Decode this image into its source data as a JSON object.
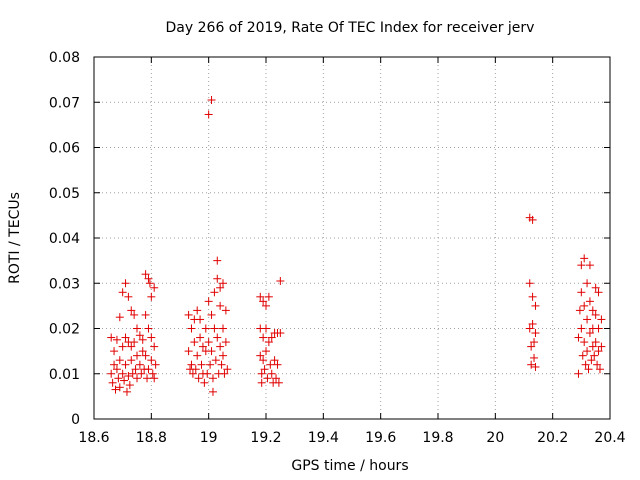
{
  "chart_data": {
    "type": "scatter",
    "title": "Day 266 of 2019, Rate Of TEC Index for receiver jerv",
    "xlabel": "GPS time / hours",
    "ylabel": "ROTI / TECUs",
    "xlim": [
      18.6,
      20.4
    ],
    "ylim": [
      0,
      0.08
    ],
    "xticks": [
      "18.6",
      "18.8",
      "19",
      "19.2",
      "19.4",
      "19.6",
      "19.8",
      "20",
      "20.2",
      "20.4"
    ],
    "yticks": [
      "0",
      "0.01",
      "0.02",
      "0.03",
      "0.04",
      "0.05",
      "0.06",
      "0.07",
      "0.08"
    ],
    "grid": true,
    "marker": "+",
    "color": "#e00000",
    "series": [
      {
        "name": "ROTI",
        "points": [
          [
            18.66,
            0.018
          ],
          [
            18.66,
            0.01
          ],
          [
            18.665,
            0.008
          ],
          [
            18.67,
            0.015
          ],
          [
            18.67,
            0.012
          ],
          [
            18.675,
            0.0065
          ],
          [
            18.68,
            0.0175
          ],
          [
            18.68,
            0.011
          ],
          [
            18.685,
            0.009
          ],
          [
            18.69,
            0.0225
          ],
          [
            18.69,
            0.013
          ],
          [
            18.69,
            0.007
          ],
          [
            18.7,
            0.028
          ],
          [
            18.7,
            0.016
          ],
          [
            18.7,
            0.01
          ],
          [
            18.705,
            0.0085
          ],
          [
            18.71,
            0.03
          ],
          [
            18.71,
            0.018
          ],
          [
            18.71,
            0.012
          ],
          [
            18.715,
            0.006
          ],
          [
            18.72,
            0.027
          ],
          [
            18.72,
            0.017
          ],
          [
            18.72,
            0.0095
          ],
          [
            18.725,
            0.0075
          ],
          [
            18.73,
            0.024
          ],
          [
            18.73,
            0.016
          ],
          [
            18.73,
            0.013
          ],
          [
            18.735,
            0.01
          ],
          [
            18.74,
            0.023
          ],
          [
            18.74,
            0.017
          ],
          [
            18.745,
            0.011
          ],
          [
            18.75,
            0.02
          ],
          [
            18.75,
            0.014
          ],
          [
            18.75,
            0.009
          ],
          [
            18.76,
            0.0185
          ],
          [
            18.76,
            0.012
          ],
          [
            18.765,
            0.01
          ],
          [
            18.77,
            0.0175
          ],
          [
            18.77,
            0.015
          ],
          [
            18.775,
            0.011
          ],
          [
            18.78,
            0.032
          ],
          [
            18.78,
            0.023
          ],
          [
            18.78,
            0.014
          ],
          [
            18.785,
            0.009
          ],
          [
            18.79,
            0.031
          ],
          [
            18.79,
            0.02
          ],
          [
            18.79,
            0.011
          ],
          [
            18.795,
            0.03
          ],
          [
            18.8,
            0.027
          ],
          [
            18.8,
            0.018
          ],
          [
            18.8,
            0.013
          ],
          [
            18.805,
            0.01
          ],
          [
            18.81,
            0.029
          ],
          [
            18.81,
            0.016
          ],
          [
            18.81,
            0.009
          ],
          [
            18.815,
            0.012
          ],
          [
            18.93,
            0.023
          ],
          [
            18.93,
            0.015
          ],
          [
            18.935,
            0.011
          ],
          [
            18.94,
            0.02
          ],
          [
            18.94,
            0.012
          ],
          [
            18.945,
            0.01
          ],
          [
            18.95,
            0.022
          ],
          [
            18.95,
            0.017
          ],
          [
            18.955,
            0.011
          ],
          [
            18.96,
            0.024
          ],
          [
            18.96,
            0.014
          ],
          [
            18.965,
            0.009
          ],
          [
            18.97,
            0.022
          ],
          [
            18.97,
            0.018
          ],
          [
            18.975,
            0.012
          ],
          [
            18.98,
            0.016
          ],
          [
            18.98,
            0.01
          ],
          [
            18.985,
            0.008
          ],
          [
            18.99,
            0.02
          ],
          [
            18.99,
            0.015
          ],
          [
            18.995,
            0.01
          ],
          [
            19.0,
            0.0673
          ],
          [
            19.0,
            0.026
          ],
          [
            19.0,
            0.017
          ],
          [
            19.005,
            0.012
          ],
          [
            19.01,
            0.0705
          ],
          [
            19.01,
            0.023
          ],
          [
            19.01,
            0.015
          ],
          [
            19.015,
            0.009
          ],
          [
            19.015,
            0.006
          ],
          [
            19.02,
            0.028
          ],
          [
            19.02,
            0.02
          ],
          [
            19.025,
            0.013
          ],
          [
            19.03,
            0.035
          ],
          [
            19.03,
            0.031
          ],
          [
            19.03,
            0.018
          ],
          [
            19.035,
            0.01
          ],
          [
            19.04,
            0.029
          ],
          [
            19.04,
            0.025
          ],
          [
            19.04,
            0.016
          ],
          [
            19.045,
            0.012
          ],
          [
            19.05,
            0.03
          ],
          [
            19.05,
            0.02
          ],
          [
            19.05,
            0.014
          ],
          [
            19.055,
            0.01
          ],
          [
            19.06,
            0.024
          ],
          [
            19.06,
            0.017
          ],
          [
            19.065,
            0.011
          ],
          [
            19.18,
            0.027
          ],
          [
            19.18,
            0.02
          ],
          [
            19.18,
            0.014
          ],
          [
            19.185,
            0.01
          ],
          [
            19.185,
            0.008
          ],
          [
            19.19,
            0.026
          ],
          [
            19.19,
            0.018
          ],
          [
            19.19,
            0.013
          ],
          [
            19.195,
            0.011
          ],
          [
            19.2,
            0.025
          ],
          [
            19.2,
            0.02
          ],
          [
            19.2,
            0.015
          ],
          [
            19.205,
            0.009
          ],
          [
            19.21,
            0.027
          ],
          [
            19.21,
            0.017
          ],
          [
            19.215,
            0.012
          ],
          [
            19.22,
            0.018
          ],
          [
            19.22,
            0.01
          ],
          [
            19.225,
            0.008
          ],
          [
            19.23,
            0.019
          ],
          [
            19.23,
            0.013
          ],
          [
            19.235,
            0.009
          ],
          [
            19.24,
            0.019
          ],
          [
            19.24,
            0.012
          ],
          [
            19.245,
            0.008
          ],
          [
            19.25,
            0.0305
          ],
          [
            19.25,
            0.019
          ],
          [
            20.12,
            0.0445
          ],
          [
            20.12,
            0.03
          ],
          [
            20.12,
            0.02
          ],
          [
            20.125,
            0.016
          ],
          [
            20.125,
            0.012
          ],
          [
            20.13,
            0.044
          ],
          [
            20.13,
            0.027
          ],
          [
            20.13,
            0.021
          ],
          [
            20.135,
            0.017
          ],
          [
            20.135,
            0.0135
          ],
          [
            20.14,
            0.025
          ],
          [
            20.14,
            0.019
          ],
          [
            20.14,
            0.0115
          ],
          [
            20.29,
            0.01
          ],
          [
            20.29,
            0.018
          ],
          [
            20.295,
            0.024
          ],
          [
            20.3,
            0.034
          ],
          [
            20.3,
            0.028
          ],
          [
            20.3,
            0.02
          ],
          [
            20.305,
            0.014
          ],
          [
            20.31,
            0.0355
          ],
          [
            20.31,
            0.025
          ],
          [
            20.31,
            0.017
          ],
          [
            20.315,
            0.012
          ],
          [
            20.32,
            0.03
          ],
          [
            20.32,
            0.022
          ],
          [
            20.32,
            0.015
          ],
          [
            20.325,
            0.011
          ],
          [
            20.33,
            0.034
          ],
          [
            20.33,
            0.026
          ],
          [
            20.33,
            0.019
          ],
          [
            20.335,
            0.013
          ],
          [
            20.34,
            0.024
          ],
          [
            20.34,
            0.02
          ],
          [
            20.34,
            0.016
          ],
          [
            20.345,
            0.014
          ],
          [
            20.35,
            0.029
          ],
          [
            20.35,
            0.023
          ],
          [
            20.35,
            0.017
          ],
          [
            20.355,
            0.012
          ],
          [
            20.36,
            0.028
          ],
          [
            20.36,
            0.02
          ],
          [
            20.36,
            0.015
          ],
          [
            20.365,
            0.011
          ],
          [
            20.37,
            0.022
          ],
          [
            20.37,
            0.016
          ]
        ]
      }
    ]
  }
}
